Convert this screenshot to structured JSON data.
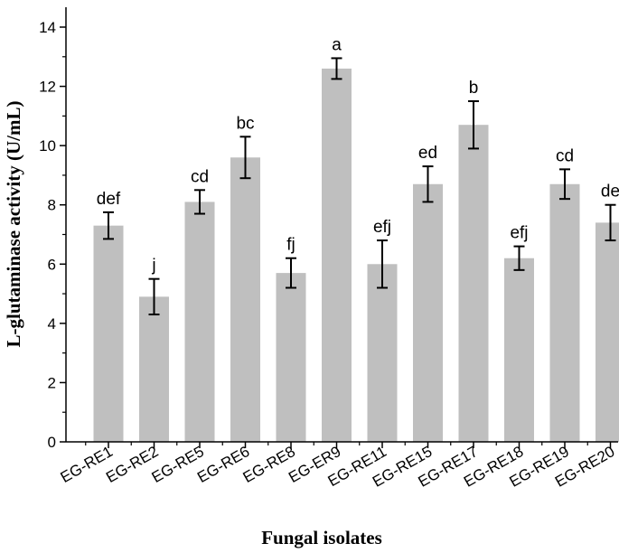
{
  "chart_data": {
    "type": "bar",
    "xlabel": "Fungal isolates",
    "ylabel": "L-glutaminase activity (U/mL)",
    "ylim": [
      0,
      14
    ],
    "yticks": [
      "0",
      "2",
      "4",
      "6",
      "8",
      "10",
      "12",
      "14"
    ],
    "categories": [
      "EG-RE1",
      "EG-RE2",
      "EG-RE5",
      "EG-RE6",
      "EG-RE8",
      "EG-ER9",
      "EG-RE11",
      "EG-RE15",
      "EG-RE17",
      "EG-RE18",
      "EG-RE19",
      "EG-RE20"
    ],
    "values": [
      7.3,
      4.9,
      8.1,
      9.6,
      5.7,
      12.6,
      6.0,
      8.7,
      10.7,
      6.2,
      8.7,
      7.4
    ],
    "errors": [
      0.45,
      0.6,
      0.4,
      0.7,
      0.5,
      0.35,
      0.8,
      0.6,
      0.8,
      0.4,
      0.5,
      0.6
    ],
    "significance_letters": [
      "def",
      "j",
      "cd",
      "bc",
      "fj",
      "a",
      "efj",
      "ed",
      "b",
      "efj",
      "cd",
      "de"
    ],
    "bar_color": "#bfbfbf",
    "grid": false,
    "legend": "none"
  }
}
